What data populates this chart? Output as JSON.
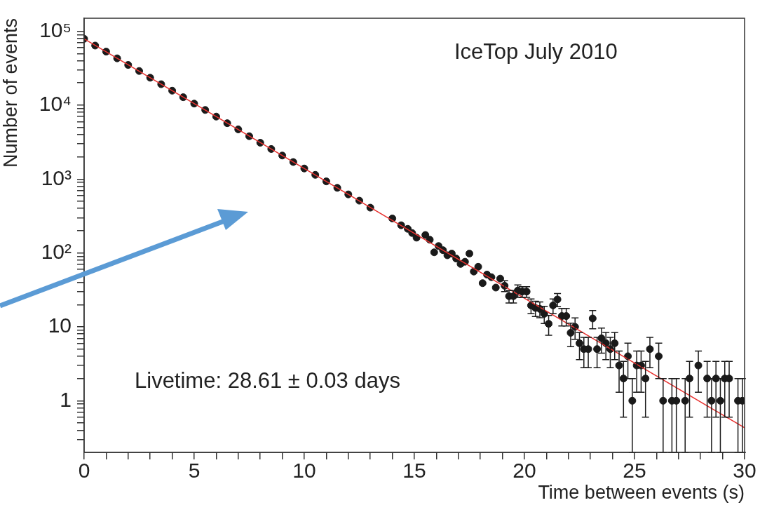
{
  "chart_data": {
    "type": "scatter",
    "xlabel": "Time between events (s)",
    "ylabel": "Number of events",
    "annotations": [
      "IceTop  July 2010",
      "Livetime: 28.61 ±  0.03 days"
    ],
    "log": "y",
    "marker": "circle",
    "xlim": [
      0,
      30
    ],
    "ylim": [
      0.2,
      150000
    ],
    "xticks": [
      0,
      {
        "value": 1,
        "label": null
      },
      {
        "value": 2,
        "label": null
      },
      {
        "value": 3,
        "label": null
      },
      {
        "value": 4,
        "label": null
      },
      5,
      {
        "value": 6,
        "label": null
      },
      {
        "value": 7,
        "label": null
      },
      {
        "value": 8,
        "label": null
      },
      {
        "value": 9,
        "label": null
      },
      10,
      {
        "value": 11,
        "label": null
      },
      {
        "value": 12,
        "label": null
      },
      {
        "value": 13,
        "label": null
      },
      {
        "value": 14,
        "label": null
      },
      15,
      {
        "value": 16,
        "label": null
      },
      {
        "value": 17,
        "label": null
      },
      {
        "value": 18,
        "label": null
      },
      {
        "value": 19,
        "label": null
      },
      20,
      {
        "value": 21,
        "label": null
      },
      {
        "value": 22,
        "label": null
      },
      {
        "value": 23,
        "label": null
      },
      {
        "value": 24,
        "label": null
      },
      25,
      {
        "value": 26,
        "label": null
      },
      {
        "value": 27,
        "label": null
      },
      {
        "value": 28,
        "label": null
      },
      {
        "value": 29,
        "label": null
      },
      30
    ],
    "yticks": [
      {
        "value": 0.3,
        "label": null
      },
      {
        "value": 0.4,
        "label": null
      },
      {
        "value": 0.5,
        "label": null
      },
      {
        "value": 0.6,
        "label": null
      },
      {
        "value": 0.7,
        "label": null
      },
      {
        "value": 0.8,
        "label": null
      },
      {
        "value": 0.9,
        "label": null
      },
      1,
      {
        "value": 2,
        "label": null
      },
      {
        "value": 3,
        "label": null
      },
      {
        "value": 4,
        "label": null
      },
      {
        "value": 5,
        "label": null
      },
      {
        "value": 6,
        "label": null
      },
      {
        "value": 7,
        "label": null
      },
      {
        "value": 8,
        "label": null
      },
      {
        "value": 9,
        "label": null
      },
      10,
      {
        "value": 20,
        "label": null
      },
      {
        "value": 30,
        "label": null
      },
      {
        "value": 40,
        "label": null
      },
      {
        "value": 50,
        "label": null
      },
      {
        "value": 60,
        "label": null
      },
      {
        "value": 70,
        "label": null
      },
      {
        "value": 80,
        "label": null
      },
      {
        "value": 90,
        "label": null
      },
      {
        "value": 100,
        "label": "10²"
      },
      {
        "value": 200,
        "label": null
      },
      {
        "value": 300,
        "label": null
      },
      {
        "value": 400,
        "label": null
      },
      {
        "value": 500,
        "label": null
      },
      {
        "value": 600,
        "label": null
      },
      {
        "value": 700,
        "label": null
      },
      {
        "value": 800,
        "label": null
      },
      {
        "value": 900,
        "label": null
      },
      {
        "value": 1000,
        "label": "10³"
      },
      {
        "value": 2000,
        "label": null
      },
      {
        "value": 3000,
        "label": null
      },
      {
        "value": 4000,
        "label": null
      },
      {
        "value": 5000,
        "label": null
      },
      {
        "value": 6000,
        "label": null
      },
      {
        "value": 7000,
        "label": null
      },
      {
        "value": 8000,
        "label": null
      },
      {
        "value": 9000,
        "label": null
      },
      {
        "value": 10000,
        "label": "10⁴"
      },
      {
        "value": 20000,
        "label": null
      },
      {
        "value": 30000,
        "label": null
      },
      {
        "value": 40000,
        "label": null
      },
      {
        "value": 50000,
        "label": null
      },
      {
        "value": 60000,
        "label": null
      },
      {
        "value": 70000,
        "label": null
      },
      {
        "value": 80000,
        "label": null
      },
      {
        "value": 90000,
        "label": null
      },
      {
        "value": 100000,
        "label": "10⁵"
      }
    ],
    "series": [
      {
        "type": "scatter",
        "color": "#1a1a1a",
        "x": [
          0,
          0.5,
          1,
          1.5,
          2,
          2.5,
          3,
          3.5,
          4,
          4.5,
          5,
          5.5,
          6,
          6.5,
          7,
          7.5,
          8,
          8.5,
          9,
          9.5,
          10,
          10.5,
          11,
          11.5,
          12,
          12.5,
          13,
          14.0,
          14.4,
          14.7,
          14.9,
          15.1,
          15.5,
          15.7,
          15.9,
          16.1,
          16.3,
          16.5,
          16.7,
          16.9,
          17.1,
          17.3,
          17.5,
          17.7,
          17.9,
          18.1,
          18.3,
          18.5,
          18.7,
          18.9,
          19.1,
          19.3,
          19.5,
          19.7,
          19.9,
          20.1,
          20.3,
          20.5,
          20.7,
          20.9,
          21.1,
          21.3,
          21.5,
          21.7,
          21.9,
          22.1,
          22.3,
          22.5,
          22.7,
          22.9,
          23.1,
          23.3,
          23.5,
          23.7,
          23.9,
          24.1,
          24.3,
          24.5,
          24.7,
          24.9,
          25.1,
          25.3,
          25.5,
          25.7,
          26.1,
          26.3,
          26.7,
          26.9,
          27.3,
          27.5,
          27.9,
          28.3,
          28.5,
          28.7,
          28.9,
          29.1,
          29.3,
          29.7,
          29.9
        ],
        "values": [
          79000,
          64000,
          53000,
          43000,
          35000,
          29000,
          23500,
          19200,
          15700,
          12800,
          10500,
          8600,
          7000,
          5700,
          4700,
          3800,
          3100,
          2550,
          2080,
          1700,
          1390,
          1140,
          930,
          760,
          620,
          510,
          410,
          293,
          237,
          212,
          186,
          161,
          175,
          151,
          102,
          124,
          109,
          93,
          98,
          84,
          71,
          76,
          98,
          56,
          65,
          39,
          51,
          47,
          34,
          45,
          36,
          26,
          26,
          31,
          30,
          30,
          19.5,
          18,
          17.5,
          15,
          11,
          19.5,
          23.5,
          14,
          14,
          8.3,
          10,
          6,
          5,
          5,
          13,
          5,
          7,
          6,
          5,
          6,
          3,
          2,
          4,
          1,
          3,
          3,
          2,
          5,
          4,
          1,
          1,
          1,
          1,
          2,
          3,
          2,
          1,
          2,
          1,
          2,
          2,
          1,
          1
        ],
        "errors": [
          null,
          null,
          null,
          null,
          null,
          null,
          null,
          null,
          null,
          null,
          null,
          null,
          null,
          null,
          null,
          null,
          null,
          null,
          null,
          null,
          null,
          null,
          null,
          null,
          null,
          null,
          null,
          null,
          null,
          null,
          null,
          null,
          null,
          null,
          null,
          null,
          null,
          null,
          null,
          null,
          null,
          null,
          null,
          null,
          null,
          null,
          null,
          null,
          null,
          null,
          6,
          5,
          5,
          6,
          5,
          5,
          4.4,
          4.2,
          4.2,
          3.9,
          3.3,
          4.4,
          4.8,
          3.7,
          3.7,
          2.9,
          3.2,
          2.4,
          2.2,
          2.2,
          3.6,
          2.2,
          2.6,
          2.4,
          2.2,
          2.4,
          1.7,
          1.4,
          2,
          [
            0.2,
            2
          ],
          1.7,
          1.7,
          1.4,
          2.2,
          2,
          [
            0.2,
            2
          ],
          [
            0.2,
            2
          ],
          [
            0.2,
            2
          ],
          [
            0.2,
            2
          ],
          1.4,
          1.7,
          1.4,
          [
            0.2,
            2
          ],
          1.4,
          [
            0.2,
            2
          ],
          1.4,
          1.4,
          [
            0.2,
            2
          ],
          [
            0.2,
            2
          ]
        ]
      },
      {
        "type": "line",
        "color": "#e8312f",
        "marker": "none",
        "x": [
          0,
          30
        ],
        "values": [
          79000,
          0.43
        ]
      }
    ]
  }
}
